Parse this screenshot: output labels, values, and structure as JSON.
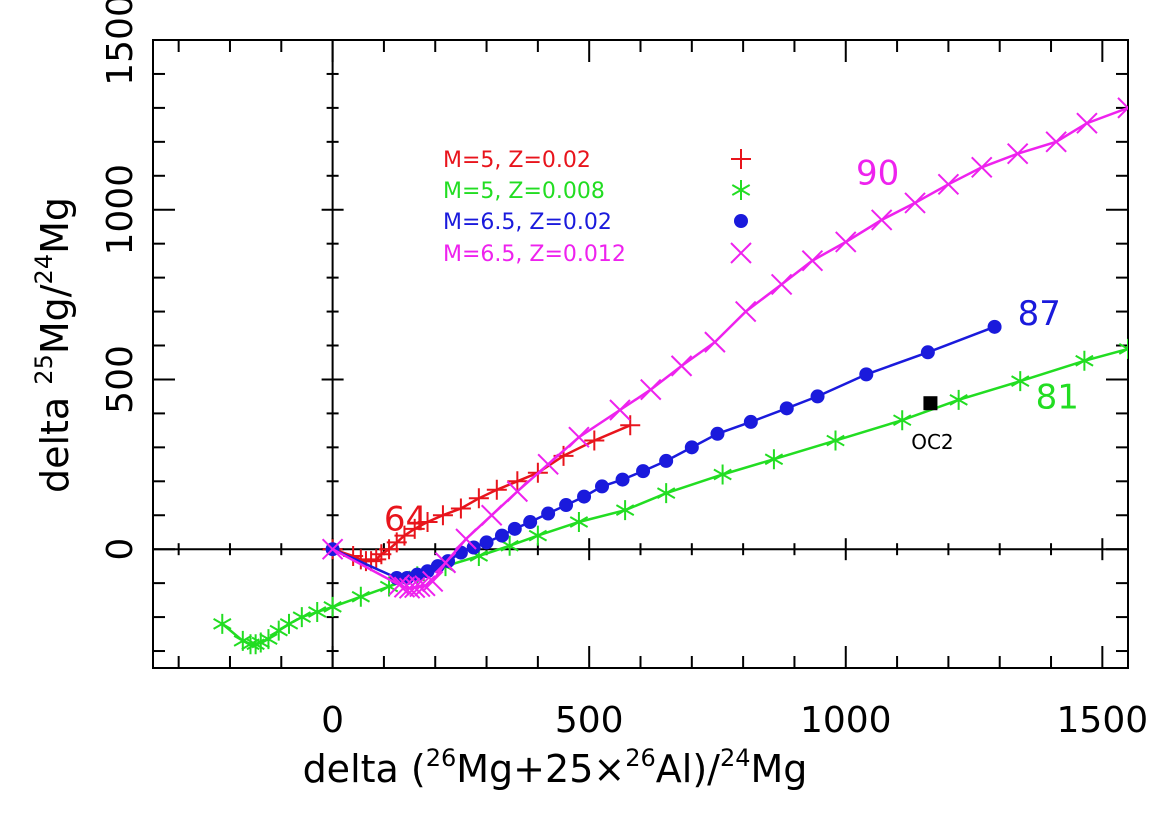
{
  "chart_data": {
    "type": "scatter",
    "xlabel": {
      "prefix": "delta  (",
      "sup1": "26",
      "mid1": "Mg+25×",
      "sup2": "26",
      "mid2": "Al)/",
      "sup3": "24",
      "suffix": "Mg"
    },
    "ylabel": {
      "prefix": "delta  ",
      "sup1": "25",
      "mid1": "Mg/",
      "sup2": "24",
      "suffix": "Mg"
    },
    "xlim": [
      -350,
      1550
    ],
    "ylim": [
      -350,
      1500
    ],
    "xticks": [
      0,
      500,
      1000,
      1500
    ],
    "yticks": [
      0,
      500,
      1000,
      1500
    ],
    "xtick_labels": [
      "0",
      "500",
      "1000",
      "1500"
    ],
    "ytick_labels": [
      "0",
      "500",
      "1000",
      "1500"
    ],
    "grid": false,
    "legend_position": "upper-left",
    "series": [
      {
        "name": "M=5,  Z=0.02",
        "color": "#e8141c",
        "marker": "plus",
        "end_label": "64",
        "points": [
          [
            0,
            0
          ],
          [
            40,
            -20
          ],
          [
            55,
            -30
          ],
          [
            65,
            -35
          ],
          [
            75,
            -35
          ],
          [
            85,
            -30
          ],
          [
            95,
            -15
          ],
          [
            110,
            0
          ],
          [
            125,
            20
          ],
          [
            140,
            40
          ],
          [
            160,
            60
          ],
          [
            185,
            80
          ],
          [
            215,
            100
          ],
          [
            250,
            120
          ],
          [
            285,
            150
          ],
          [
            320,
            175
          ],
          [
            360,
            200
          ],
          [
            400,
            225
          ],
          [
            450,
            275
          ],
          [
            510,
            320
          ],
          [
            580,
            365
          ]
        ]
      },
      {
        "name": "M=5,  Z=0.008",
        "color": "#22dd22",
        "marker": "star",
        "end_label": "81",
        "points": [
          [
            -215,
            -220
          ],
          [
            -175,
            -270
          ],
          [
            -160,
            -280
          ],
          [
            -150,
            -280
          ],
          [
            -140,
            -275
          ],
          [
            -125,
            -265
          ],
          [
            -105,
            -240
          ],
          [
            -85,
            -220
          ],
          [
            -60,
            -200
          ],
          [
            -30,
            -185
          ],
          [
            0,
            -170
          ],
          [
            55,
            -140
          ],
          [
            110,
            -110
          ],
          [
            165,
            -80
          ],
          [
            220,
            -50
          ],
          [
            285,
            -20
          ],
          [
            345,
            10
          ],
          [
            400,
            40
          ],
          [
            480,
            80
          ],
          [
            570,
            115
          ],
          [
            650,
            165
          ],
          [
            760,
            220
          ],
          [
            860,
            265
          ],
          [
            980,
            320
          ],
          [
            1110,
            380
          ],
          [
            1220,
            440
          ],
          [
            1340,
            495
          ],
          [
            1465,
            555
          ],
          [
            1550,
            590
          ]
        ]
      },
      {
        "name": "M=6.5,  Z=0.02",
        "color": "#1a1adc",
        "marker": "circle",
        "end_label": "87",
        "points": [
          [
            0,
            0
          ],
          [
            125,
            -85
          ],
          [
            145,
            -85
          ],
          [
            165,
            -75
          ],
          [
            185,
            -65
          ],
          [
            205,
            -50
          ],
          [
            225,
            -35
          ],
          [
            250,
            -10
          ],
          [
            275,
            5
          ],
          [
            300,
            20
          ],
          [
            330,
            40
          ],
          [
            355,
            60
          ],
          [
            385,
            80
          ],
          [
            420,
            105
          ],
          [
            455,
            130
          ],
          [
            490,
            155
          ],
          [
            525,
            185
          ],
          [
            565,
            205
          ],
          [
            605,
            230
          ],
          [
            650,
            260
          ],
          [
            700,
            300
          ],
          [
            750,
            340
          ],
          [
            815,
            375
          ],
          [
            885,
            415
          ],
          [
            945,
            450
          ],
          [
            1040,
            515
          ],
          [
            1160,
            580
          ],
          [
            1290,
            655
          ]
        ]
      },
      {
        "name": "M=6.5,  Z=0.012",
        "color": "#ee22ee",
        "marker": "cross",
        "end_label": "90",
        "points": [
          [
            0,
            0
          ],
          [
            130,
            -105
          ],
          [
            140,
            -112
          ],
          [
            150,
            -115
          ],
          [
            160,
            -113
          ],
          [
            170,
            -110
          ],
          [
            180,
            -108
          ],
          [
            195,
            -95
          ],
          [
            220,
            -40
          ],
          [
            260,
            30
          ],
          [
            310,
            100
          ],
          [
            360,
            170
          ],
          [
            420,
            250
          ],
          [
            480,
            330
          ],
          [
            560,
            410
          ],
          [
            620,
            470
          ],
          [
            680,
            540
          ],
          [
            745,
            610
          ],
          [
            805,
            700
          ],
          [
            875,
            780
          ],
          [
            935,
            850
          ],
          [
            1000,
            905
          ],
          [
            1070,
            970
          ],
          [
            1135,
            1020
          ],
          [
            1200,
            1075
          ],
          [
            1265,
            1125
          ],
          [
            1335,
            1165
          ],
          [
            1410,
            1200
          ],
          [
            1470,
            1255
          ],
          [
            1550,
            1300
          ]
        ]
      }
    ],
    "annotation_point": {
      "label": "OC2",
      "x": 1165,
      "y": 430,
      "color": "#000000"
    }
  }
}
